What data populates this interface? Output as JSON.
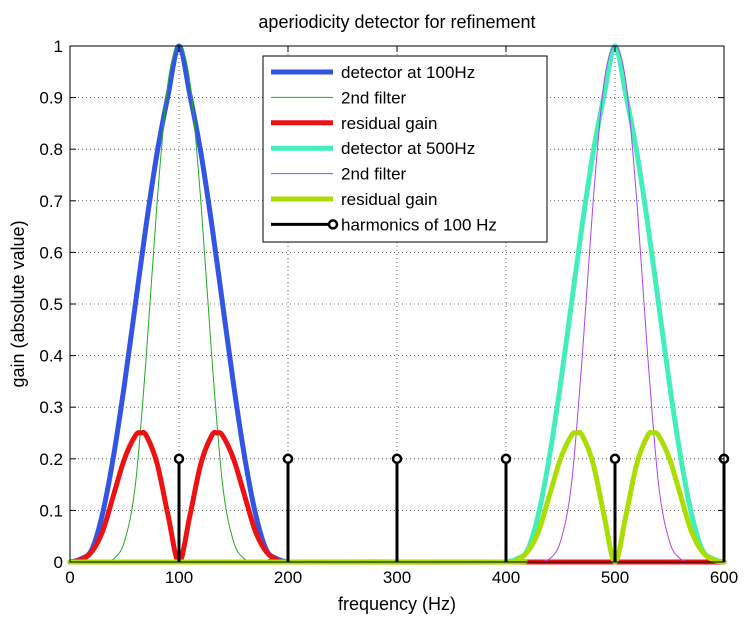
{
  "chart_data": {
    "type": "line",
    "title": "aperiodicity detector for refinement",
    "xlabel": "frequency (Hz)",
    "ylabel": "gain (absolute value)",
    "xlim": [
      0,
      600
    ],
    "ylim": [
      0,
      1
    ],
    "grid": true,
    "legend_position": "top-center",
    "x_ticks": [
      0,
      100,
      200,
      300,
      400,
      500,
      600
    ],
    "y_ticks": [
      0,
      0.1,
      0.2,
      0.3,
      0.4,
      0.5,
      0.6,
      0.7,
      0.8,
      0.9,
      1
    ],
    "x_tick_labels": [
      "0",
      "100",
      "200",
      "300",
      "400",
      "500",
      "600"
    ],
    "y_tick_labels": [
      "0",
      "0.1",
      "0.2",
      "0.3",
      "0.4",
      "0.5",
      "0.6",
      "0.7",
      "0.8",
      "0.9",
      "1"
    ],
    "series": [
      {
        "name": "detector at 100Hz",
        "kind": "curve",
        "color": "#3355e6",
        "linewidth_weight": "thick",
        "x": [
          0,
          10,
          20,
          30,
          40,
          50,
          60,
          70,
          80,
          90,
          100,
          110,
          120,
          130,
          140,
          150,
          160,
          170,
          180,
          190,
          200
        ],
        "y": [
          0,
          0.006,
          0.024,
          0.095,
          0.206,
          0.345,
          0.5,
          0.655,
          0.794,
          0.905,
          1,
          0.905,
          0.794,
          0.655,
          0.5,
          0.345,
          0.206,
          0.095,
          0.024,
          0.006,
          0
        ]
      },
      {
        "name": "2nd filter",
        "kind": "curve",
        "color": "#22aa22",
        "linewidth_weight": "thin",
        "x": [
          30,
          40,
          50,
          60,
          70,
          80,
          90,
          100,
          110,
          120,
          130,
          140,
          150,
          160,
          170
        ],
        "y": [
          0,
          0.006,
          0.04,
          0.15,
          0.4,
          0.7,
          0.93,
          1,
          0.93,
          0.7,
          0.4,
          0.15,
          0.04,
          0.006,
          0
        ]
      },
      {
        "name": "residual gain",
        "kind": "curve",
        "color": "#ee1111",
        "linewidth_weight": "thick",
        "x": [
          0,
          10,
          20,
          30,
          40,
          50,
          60,
          65,
          70,
          80,
          90,
          100,
          110,
          120,
          130,
          135,
          140,
          150,
          160,
          170,
          180,
          190,
          200,
          400,
          600
        ],
        "y": [
          0,
          0.004,
          0.02,
          0.06,
          0.13,
          0.2,
          0.245,
          0.25,
          0.245,
          0.19,
          0.09,
          0,
          0.09,
          0.19,
          0.245,
          0.25,
          0.245,
          0.2,
          0.13,
          0.06,
          0.02,
          0.004,
          0,
          0,
          0
        ]
      },
      {
        "name": "detector at 500Hz",
        "kind": "curve",
        "color": "#44eebb",
        "linewidth_weight": "thick",
        "x": [
          400,
          410,
          420,
          430,
          440,
          450,
          460,
          470,
          480,
          490,
          500,
          510,
          520,
          530,
          540,
          550,
          560,
          570,
          580,
          590,
          600
        ],
        "y": [
          0,
          0.006,
          0.024,
          0.095,
          0.206,
          0.345,
          0.5,
          0.655,
          0.794,
          0.905,
          1,
          0.905,
          0.794,
          0.655,
          0.5,
          0.345,
          0.206,
          0.095,
          0.024,
          0.006,
          0
        ]
      },
      {
        "name": "2nd filter",
        "kind": "curve",
        "color": "#aa44ee",
        "linewidth_weight": "thin",
        "x": [
          430,
          440,
          450,
          460,
          470,
          480,
          490,
          500,
          510,
          520,
          530,
          540,
          550,
          560,
          570
        ],
        "y": [
          0,
          0.006,
          0.04,
          0.15,
          0.4,
          0.7,
          0.93,
          1,
          0.93,
          0.7,
          0.4,
          0.15,
          0.04,
          0.006,
          0
        ]
      },
      {
        "name": "residual gain",
        "kind": "curve",
        "color": "#aadd00",
        "linewidth_weight": "thick",
        "x": [
          0,
          200,
          400,
          410,
          420,
          430,
          440,
          450,
          460,
          465,
          470,
          480,
          490,
          500,
          510,
          520,
          530,
          535,
          540,
          550,
          560,
          570,
          580,
          590,
          600
        ],
        "y": [
          0,
          0,
          0,
          0.004,
          0.02,
          0.06,
          0.13,
          0.2,
          0.245,
          0.25,
          0.245,
          0.19,
          0.09,
          0,
          0.09,
          0.19,
          0.245,
          0.25,
          0.245,
          0.2,
          0.13,
          0.06,
          0.02,
          0.004,
          0
        ]
      },
      {
        "name": "harmonics of 100 Hz",
        "kind": "stem",
        "color": "#000000",
        "x": [
          100,
          200,
          300,
          400,
          500,
          600
        ],
        "y": [
          0.2,
          0.2,
          0.2,
          0.2,
          0.2,
          0.2
        ]
      }
    ]
  }
}
